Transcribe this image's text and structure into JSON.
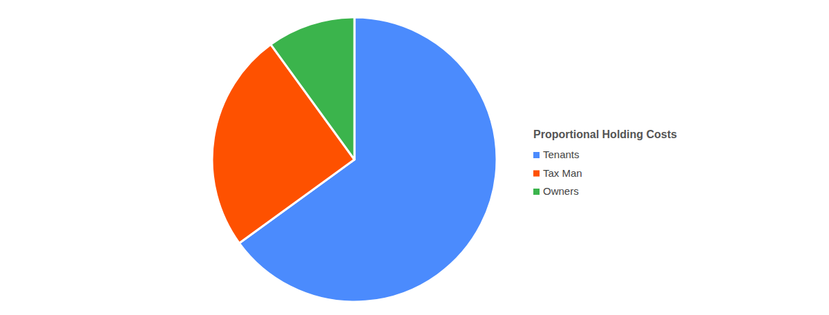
{
  "chart_data": {
    "type": "pie",
    "title": "Proportional Holding Costs",
    "categories": [
      "Tenants",
      "Tax Man",
      "Owners"
    ],
    "values": [
      65,
      25,
      10
    ],
    "colors": [
      "#4b8bfd",
      "#fe5100",
      "#3bb44c"
    ],
    "legend": "right"
  }
}
